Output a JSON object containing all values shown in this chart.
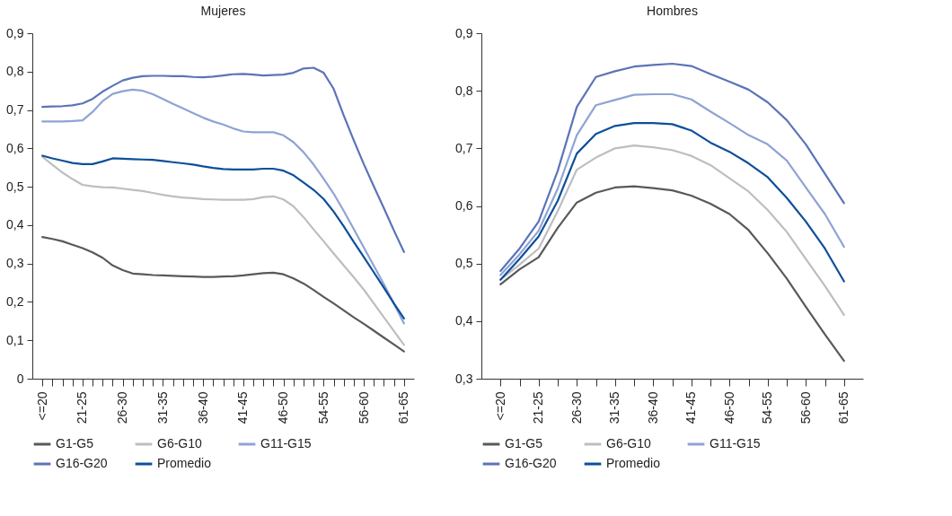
{
  "chart_data": [
    {
      "type": "line",
      "title": "Mujeres",
      "grid": false,
      "legend": "bottom",
      "line_style": "solid",
      "categories": [
        "<=20",
        null,
        null,
        null,
        "21-25",
        null,
        null,
        null,
        "26-30",
        null,
        null,
        null,
        "31-35",
        null,
        null,
        null,
        "36-40",
        null,
        null,
        null,
        "41-45",
        null,
        null,
        null,
        "46-50",
        null,
        null,
        null,
        "54-55",
        null,
        null,
        null,
        "56-60",
        null,
        null,
        null,
        "61-65"
      ],
      "ylim": [
        0,
        0.9
      ],
      "yticks": [
        0,
        {
          "value": 0.1,
          "label": "0,1"
        },
        {
          "value": 0.2,
          "label": "0,2"
        },
        {
          "value": 0.3,
          "label": "0,3"
        },
        {
          "value": 0.4,
          "label": "0,4"
        },
        {
          "value": 0.5,
          "label": "0,5"
        },
        {
          "value": 0.6,
          "label": "0,6"
        },
        {
          "value": 0.7,
          "label": "0,7"
        },
        {
          "value": 0.8,
          "label": "0,8"
        },
        {
          "value": 0.9,
          "label": "0,9"
        }
      ],
      "series": [
        {
          "name": "G1-G5",
          "color": "#58595b",
          "values": [
            0.369,
            0.364,
            0.358,
            0.349,
            0.34,
            0.329,
            0.315,
            0.295,
            0.283,
            0.274,
            0.272,
            0.27,
            0.269,
            0.268,
            0.267,
            0.266,
            0.265,
            0.265,
            0.266,
            0.267,
            0.269,
            0.272,
            0.275,
            0.276,
            0.272,
            0.261,
            0.248,
            0.231,
            0.213,
            0.196,
            0.178,
            0.16,
            0.143,
            0.125,
            0.107,
            0.089,
            0.071
          ]
        },
        {
          "name": "G6-G10",
          "color": "#bcbec0",
          "values": [
            0.578,
            0.557,
            0.537,
            0.52,
            0.505,
            0.501,
            0.499,
            0.498,
            0.495,
            0.492,
            0.489,
            0.484,
            0.479,
            0.475,
            0.472,
            0.47,
            0.468,
            0.467,
            0.466,
            0.466,
            0.466,
            0.468,
            0.473,
            0.475,
            0.467,
            0.449,
            0.421,
            0.389,
            0.358,
            0.326,
            0.295,
            0.264,
            0.232,
            0.196,
            0.16,
            0.124,
            0.088
          ]
        },
        {
          "name": "G11-G15",
          "color": "#8fa3d4",
          "values": [
            0.67,
            0.67,
            0.67,
            0.671,
            0.673,
            0.695,
            0.723,
            0.742,
            0.749,
            0.753,
            0.75,
            0.741,
            0.729,
            0.716,
            0.704,
            0.692,
            0.68,
            0.67,
            0.662,
            0.652,
            0.644,
            0.642,
            0.642,
            0.642,
            0.634,
            0.616,
            0.59,
            0.558,
            0.521,
            0.482,
            0.437,
            0.39,
            0.342,
            0.294,
            0.246,
            0.195,
            0.144
          ]
        },
        {
          "name": "G16-G20",
          "color": "#5b74b8",
          "values": [
            0.708,
            0.709,
            0.71,
            0.712,
            0.717,
            0.729,
            0.748,
            0.763,
            0.777,
            0.784,
            0.788,
            0.789,
            0.789,
            0.788,
            0.788,
            0.786,
            0.785,
            0.787,
            0.79,
            0.793,
            0.794,
            0.792,
            0.79,
            0.791,
            0.792,
            0.797,
            0.808,
            0.81,
            0.797,
            0.755,
            0.686,
            0.621,
            0.559,
            0.501,
            0.444,
            0.386,
            0.33
          ]
        },
        {
          "name": "Promedio",
          "color": "#0d4f9a",
          "values": [
            0.581,
            0.574,
            0.568,
            0.562,
            0.559,
            0.559,
            0.566,
            0.574,
            0.573,
            0.572,
            0.571,
            0.57,
            0.567,
            0.564,
            0.561,
            0.558,
            0.553,
            0.549,
            0.546,
            0.545,
            0.545,
            0.545,
            0.547,
            0.547,
            0.542,
            0.53,
            0.511,
            0.492,
            0.468,
            0.435,
            0.397,
            0.356,
            0.317,
            0.277,
            0.237,
            0.196,
            0.157
          ]
        }
      ]
    },
    {
      "type": "line",
      "title": "Hombres",
      "grid": false,
      "legend": "bottom",
      "line_style": "solid",
      "categories": [
        "<=20",
        null,
        "21-25",
        null,
        "26-30",
        null,
        "31-35",
        null,
        "36-40",
        null,
        "41-45",
        null,
        "46-50",
        null,
        "54-55",
        null,
        "56-60",
        null,
        "61-65"
      ],
      "ylim": [
        0.3,
        0.9
      ],
      "yticks": [
        {
          "value": 0.3,
          "label": "0,3"
        },
        {
          "value": 0.4,
          "label": "0,4"
        },
        {
          "value": 0.5,
          "label": "0,5"
        },
        {
          "value": 0.6,
          "label": "0,6"
        },
        {
          "value": 0.7,
          "label": "0,7"
        },
        {
          "value": 0.8,
          "label": "0,8"
        },
        {
          "value": 0.9,
          "label": "0,9"
        }
      ],
      "series": [
        {
          "name": "G1-G5",
          "color": "#58595b",
          "values": [
            0.464,
            0.49,
            0.511,
            0.562,
            0.606,
            0.623,
            0.632,
            0.634,
            0.631,
            0.627,
            0.618,
            0.604,
            0.586,
            0.558,
            0.518,
            0.474,
            0.425,
            0.377,
            0.331
          ]
        },
        {
          "name": "G6-G10",
          "color": "#bcbec0",
          "values": [
            0.472,
            0.498,
            0.526,
            0.591,
            0.663,
            0.684,
            0.7,
            0.705,
            0.702,
            0.697,
            0.687,
            0.671,
            0.648,
            0.625,
            0.593,
            0.555,
            0.508,
            0.461,
            0.411
          ]
        },
        {
          "name": "G11-G15",
          "color": "#8fa3d4",
          "values": [
            0.48,
            0.516,
            0.557,
            0.63,
            0.723,
            0.775,
            0.784,
            0.793,
            0.794,
            0.794,
            0.785,
            0.764,
            0.744,
            0.723,
            0.707,
            0.679,
            0.632,
            0.586,
            0.529
          ]
        },
        {
          "name": "G16-G20",
          "color": "#5b74b8",
          "values": [
            0.487,
            0.526,
            0.573,
            0.661,
            0.772,
            0.824,
            0.834,
            0.842,
            0.845,
            0.847,
            0.843,
            0.829,
            0.816,
            0.802,
            0.78,
            0.749,
            0.707,
            0.656,
            0.605
          ]
        },
        {
          "name": "Promedio",
          "color": "#0d4f9a",
          "values": [
            0.472,
            0.508,
            0.547,
            0.609,
            0.691,
            0.725,
            0.739,
            0.744,
            0.744,
            0.742,
            0.731,
            0.71,
            0.694,
            0.674,
            0.65,
            0.614,
            0.573,
            0.526,
            0.469
          ]
        }
      ]
    }
  ]
}
